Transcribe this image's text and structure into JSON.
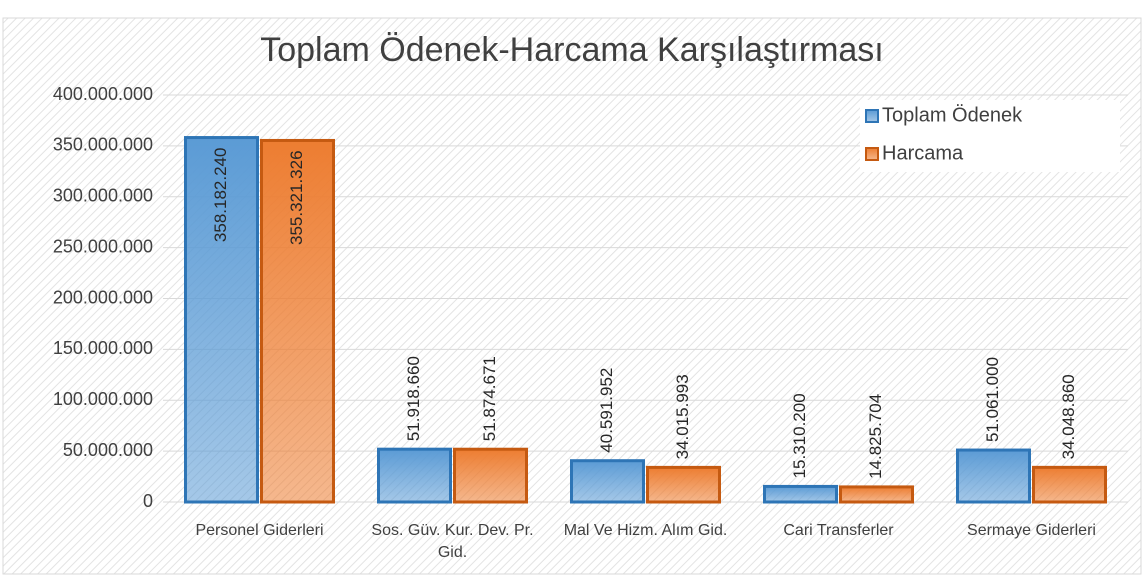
{
  "chart_data": {
    "type": "bar",
    "title": "Toplam Ödenek-Harcama Karşılaştırması",
    "categories": [
      "Personel Giderleri",
      "Sos. Güv. Kur. Dev. Pr. Gid.",
      "Mal Ve Hizm. Alım Gid.",
      "Cari Transferler",
      "Sermaye Giderleri"
    ],
    "series": [
      {
        "name": "Toplam Ödenek",
        "color": "#5b9bd5",
        "border": "#2e75b6",
        "values": [
          358182240,
          51918660,
          40591952,
          15310200,
          51061000
        ],
        "value_labels": [
          "358.182.240",
          "51.918.660",
          "40.591.952",
          "15.310.200",
          "51.061.000"
        ]
      },
      {
        "name": "Harcama",
        "color": "#ed7d31",
        "border": "#c55a11",
        "values": [
          355321326,
          51874671,
          34015993,
          14825704,
          34048860
        ],
        "value_labels": [
          "355.321.326",
          "51.874.671",
          "34.015.993",
          "14.825.704",
          "34.048.860"
        ]
      }
    ],
    "ylim": [
      0,
      400000000
    ],
    "yticks": [
      0,
      {
        "value": 50000000,
        "label": "50.000.000"
      },
      {
        "value": 100000000,
        "label": "100.000.000"
      },
      {
        "value": 150000000,
        "label": "150.000.000"
      },
      {
        "value": 200000000,
        "label": "200.000.000"
      },
      {
        "value": 250000000,
        "label": "250.000.000"
      },
      {
        "value": 300000000,
        "label": "300.000.000"
      },
      {
        "value": 350000000,
        "label": "350.000.000"
      },
      {
        "value": 400000000,
        "label": "400.000.000"
      }
    ],
    "grid": true,
    "legend": "top-right"
  }
}
